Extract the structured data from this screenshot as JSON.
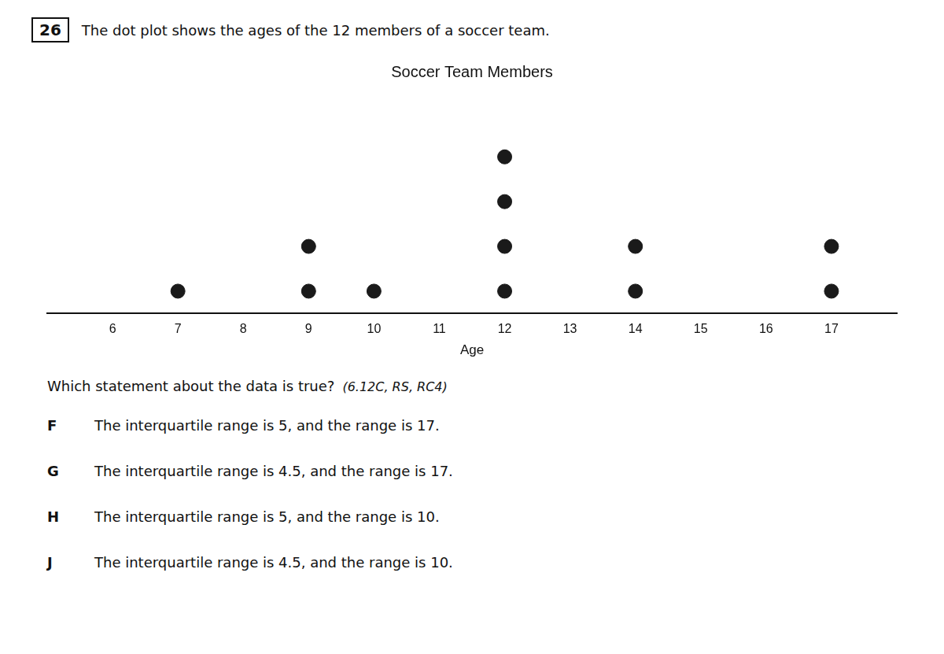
{
  "chart_data": {
    "type": "dot",
    "title": "Soccer Team Members",
    "xlabel": "Age",
    "x": [
      7,
      9,
      10,
      12,
      14,
      17
    ],
    "values": [
      1,
      2,
      1,
      4,
      2,
      2
    ],
    "color": "#1a1a1a",
    "xlim": [
      5,
      18
    ],
    "xticks": [
      6,
      7,
      8,
      9,
      10,
      11,
      12,
      13,
      14,
      15,
      16,
      17
    ],
    "ylim": [
      0,
      5
    ],
    "grid": false,
    "tick_labels": "x",
    "annotations": [
      "26",
      "The dot plot shows the ages of the 12 members of a soccer team.",
      "Which statement about the data is true?",
      "(6.12C, RS, RC4)",
      "F",
      "The interquartile range is 5, and the range is 17.",
      "G",
      "The interquartile range is 4.5, and the range is 17.",
      "H",
      "The interquartile range is 5, and the range is 10.",
      "J",
      "The interquartile range is 4.5, and the range is 10."
    ]
  }
}
